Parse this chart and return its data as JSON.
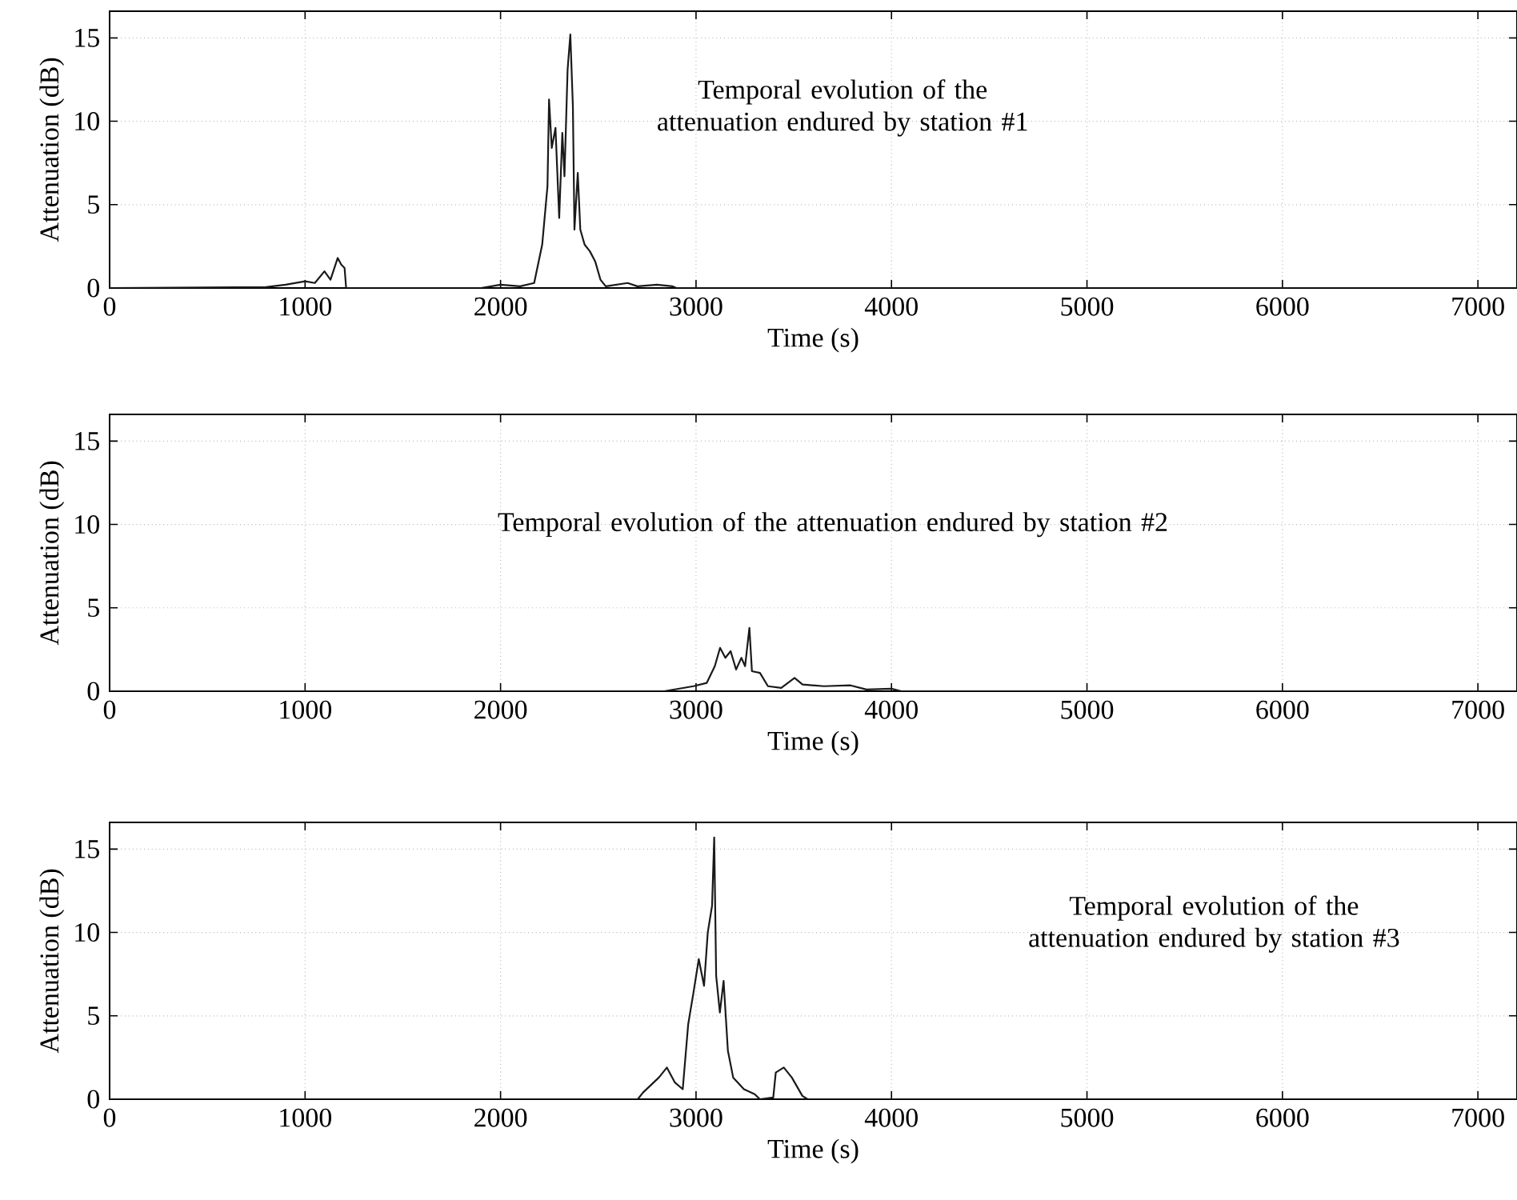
{
  "chart_data": [
    {
      "type": "line",
      "xlabel": "Time (s)",
      "ylabel": "Attenuation (dB)",
      "annotations": [
        "Temporal evolution of the attenuation endured by station #1"
      ],
      "xlim": [
        0,
        7200
      ],
      "ylim": [
        0,
        16.6
      ],
      "xticks": [
        0,
        1000,
        2000,
        3000,
        4000,
        5000,
        6000,
        7000
      ],
      "yticks": [
        0,
        5,
        10,
        15
      ],
      "grid": true,
      "marker": "none",
      "line_style": "solid",
      "series": [
        {
          "color": "#1a1a1a",
          "x": [
            0,
            800,
            900,
            1000,
            1050,
            1099,
            1130,
            1167,
            1185,
            1202,
            1210,
            1500,
            1900,
            2000,
            2100,
            2172,
            2213,
            2240,
            2248,
            2262,
            2281,
            2300,
            2316,
            2327,
            2343,
            2357,
            2370,
            2378,
            2395,
            2408,
            2430,
            2457,
            2484,
            2511,
            2538,
            2650,
            2700,
            2800,
            2880,
            2900,
            7200
          ],
          "values": [
            0,
            0.05,
            0.2,
            0.4,
            0.3,
            1.0,
            0.5,
            1.8,
            1.4,
            1.2,
            0,
            0,
            0,
            0.2,
            0.1,
            0.3,
            2.6,
            6.1,
            11.3,
            8.4,
            9.6,
            4.2,
            9.3,
            6.7,
            13.1,
            15.2,
            10.9,
            3.5,
            6.9,
            3.5,
            2.6,
            2.2,
            1.6,
            0.5,
            0.1,
            0.3,
            0.1,
            0.2,
            0.1,
            0,
            0
          ]
        }
      ]
    },
    {
      "type": "line",
      "xlabel": "Time (s)",
      "ylabel": "Attenuation (dB)",
      "annotations": [
        "Temporal evolution of the attenuation endured by station #2"
      ],
      "xlim": [
        0,
        7200
      ],
      "ylim": [
        0,
        16.6
      ],
      "xticks": [
        0,
        1000,
        2000,
        3000,
        4000,
        5000,
        6000,
        7000
      ],
      "yticks": [
        0,
        5,
        10,
        15
      ],
      "grid": true,
      "marker": "none",
      "line_style": "solid",
      "series": [
        {
          "color": "#1a1a1a",
          "x": [
            0,
            2837,
            2987,
            3055,
            3096,
            3123,
            3150,
            3177,
            3205,
            3232,
            3251,
            3273,
            3286,
            3327,
            3368,
            3436,
            3504,
            3545,
            3654,
            3790,
            3872,
            4000,
            4050,
            7200
          ],
          "values": [
            0,
            0,
            0.3,
            0.5,
            1.5,
            2.6,
            2.0,
            2.4,
            1.3,
            2.0,
            1.5,
            3.8,
            1.2,
            1.1,
            0.3,
            0.2,
            0.8,
            0.4,
            0.3,
            0.35,
            0.1,
            0.15,
            0,
            0
          ]
        }
      ]
    },
    {
      "type": "line",
      "xlabel": "Time (s)",
      "ylabel": "Attenuation (dB)",
      "annotations": [
        "Temporal evolution of the attenuation endured by station #3"
      ],
      "xlim": [
        0,
        7200
      ],
      "ylim": [
        0,
        16.6
      ],
      "xticks": [
        0,
        1000,
        2000,
        3000,
        4000,
        5000,
        6000,
        7000
      ],
      "yticks": [
        0,
        5,
        10,
        15
      ],
      "grid": true,
      "marker": "none",
      "line_style": "solid",
      "series": [
        {
          "color": "#1a1a1a",
          "x": [
            0,
            2702,
            2729,
            2810,
            2851,
            2892,
            2932,
            2960,
            2987,
            3014,
            3041,
            3060,
            3082,
            3093,
            3103,
            3122,
            3141,
            3163,
            3190,
            3245,
            3300,
            3327,
            3395,
            3408,
            3449,
            3490,
            3544,
            3571,
            7200
          ],
          "values": [
            0,
            0,
            0.4,
            1.3,
            1.9,
            1.0,
            0.6,
            4.5,
            6.4,
            8.4,
            6.8,
            10.0,
            11.6,
            15.7,
            7.4,
            5.2,
            7.1,
            2.9,
            1.3,
            0.6,
            0.3,
            0,
            0.1,
            1.6,
            1.9,
            1.3,
            0.2,
            0,
            0
          ]
        }
      ]
    }
  ]
}
